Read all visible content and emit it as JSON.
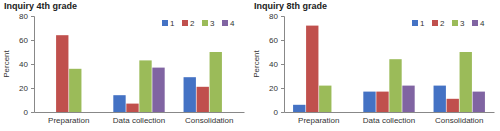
{
  "chart_data": [
    {
      "type": "bar",
      "title": "Inquiry 4th grade",
      "y_label": "Percent",
      "categories": [
        "Preparation",
        "Data collection",
        "Consolidation"
      ],
      "series": [
        {
          "name": "1",
          "color": "#4472c4",
          "values": [
            0,
            14,
            29
          ]
        },
        {
          "name": "2",
          "color": "#c0504d",
          "values": [
            64,
            7,
            21
          ]
        },
        {
          "name": "3",
          "color": "#9bbb59",
          "values": [
            36,
            43,
            50
          ]
        },
        {
          "name": "4",
          "color": "#8064a2",
          "values": [
            0,
            37,
            0
          ]
        }
      ],
      "ylim": [
        0,
        80
      ],
      "yticks": [
        0,
        20,
        40,
        60,
        80
      ],
      "legend": "top"
    },
    {
      "type": "bar",
      "title": "Inquiry 8th grade",
      "y_label": "Percent",
      "categories": [
        "Preparation",
        "Data collection",
        "Consolidation"
      ],
      "series": [
        {
          "name": "1",
          "color": "#4472c4",
          "values": [
            6,
            17,
            22
          ]
        },
        {
          "name": "2",
          "color": "#c0504d",
          "values": [
            72,
            17,
            11
          ]
        },
        {
          "name": "3",
          "color": "#9bbb59",
          "values": [
            22,
            44,
            50
          ]
        },
        {
          "name": "4",
          "color": "#8064a2",
          "values": [
            0,
            22,
            17
          ]
        }
      ],
      "ylim": [
        0,
        80
      ],
      "yticks": [
        0,
        20,
        40,
        60,
        80
      ],
      "legend": "top"
    }
  ]
}
